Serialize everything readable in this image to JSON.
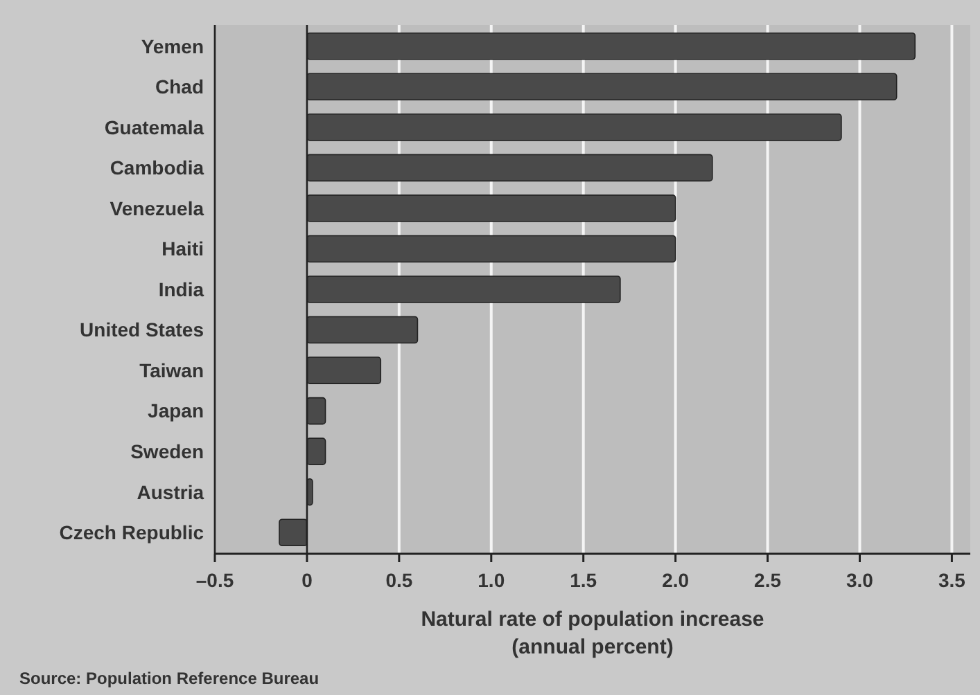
{
  "chart_data": {
    "type": "bar",
    "orientation": "horizontal",
    "categories": [
      "Yemen",
      "Chad",
      "Guatemala",
      "Cambodia",
      "Venezuela",
      "Haiti",
      "India",
      "United States",
      "Taiwan",
      "Japan",
      "Sweden",
      "Austria",
      "Czech Republic"
    ],
    "values": [
      3.3,
      3.2,
      2.9,
      2.2,
      2.0,
      2.0,
      1.7,
      0.6,
      0.4,
      0.1,
      0.1,
      0.03,
      -0.15
    ],
    "color": "#4a4a4a",
    "xlabel": "Natural rate of population increase\n(annual percent)",
    "xlim": [
      -0.5,
      3.6
    ],
    "xticks": [
      {
        "value": -0.5,
        "label": "–0.5"
      },
      0,
      0.5,
      {
        "value": 1,
        "label": "1.0"
      },
      1.5,
      {
        "value": 2,
        "label": "2.0"
      },
      2.5,
      {
        "value": 3,
        "label": "3.0"
      },
      3.5
    ],
    "grid": "x",
    "annotations": [
      "Source: Population Reference Bureau"
    ]
  }
}
